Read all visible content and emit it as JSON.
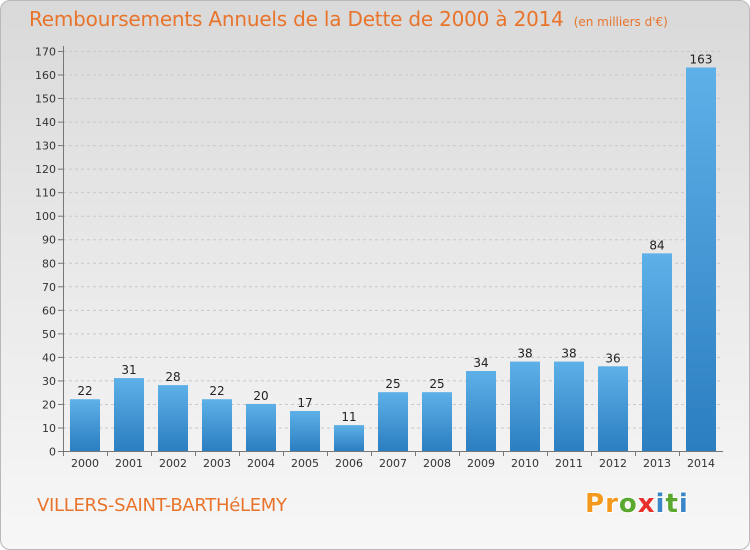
{
  "header": {
    "title": "Remboursements Annuels de la Dette de 2000 à 2014",
    "subtitle": "(en milliers d'€)"
  },
  "footer": {
    "commune": "VILLERS-SAINT-BARTHéLEMY",
    "logo_letters": [
      "P",
      "r",
      "o",
      "x",
      "i",
      "t",
      "i"
    ]
  },
  "colors": {
    "title": "#e8742c",
    "bar_light": "#5eb0e8",
    "bar_dark": "#2b7ec0",
    "grid": "#c8c8c8",
    "logo": [
      "#f39a1e",
      "#f39a1e",
      "#5aa830",
      "#e8302c",
      "#3a86c8",
      "#5aa830",
      "#3a86c8"
    ]
  },
  "chart_data": {
    "type": "bar",
    "title": "Remboursements Annuels de la Dette de 2000 à 2014",
    "subtitle": "(en milliers d'€)",
    "categories": [
      "2000",
      "2001",
      "2002",
      "2003",
      "2004",
      "2005",
      "2006",
      "2007",
      "2008",
      "2009",
      "2010",
      "2011",
      "2012",
      "2013",
      "2014"
    ],
    "values": [
      22,
      31,
      28,
      22,
      20,
      17,
      11,
      25,
      25,
      34,
      38,
      38,
      36,
      84,
      163
    ],
    "data_labels": [
      "22",
      "31",
      "28",
      "22",
      "20",
      "17",
      "11",
      "25",
      "25",
      "34",
      "38",
      "38",
      "36",
      "84",
      "163"
    ],
    "ylim": [
      0,
      170
    ],
    "yticks": [
      0,
      10,
      20,
      30,
      40,
      50,
      60,
      70,
      80,
      90,
      100,
      110,
      120,
      130,
      140,
      150,
      160,
      170
    ],
    "grid": "horizontal dashed",
    "legend": "none"
  }
}
